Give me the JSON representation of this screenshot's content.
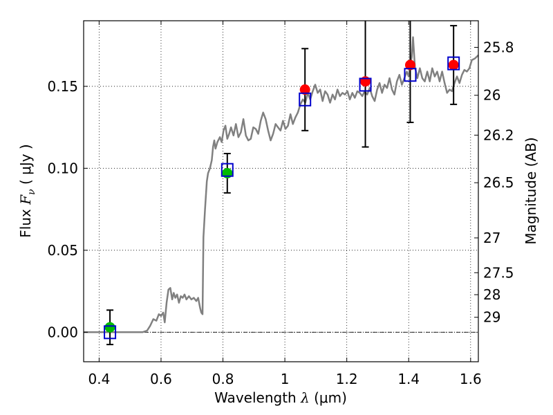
{
  "chart_data": {
    "type": "scatter",
    "title": "",
    "xlabel_prefix": "Wavelength ",
    "xlabel_symbol": "λ",
    "xlabel_unit": " (μm)",
    "ylabel_prefix": "Flux ",
    "ylabel_symbol": "F",
    "ylabel_subscript": "ν",
    "ylabel_unit": " ( μJy )",
    "y2label": "Magnitude (AB)",
    "xlim": [
      0.35,
      1.625
    ],
    "ylim": [
      -0.018,
      0.19
    ],
    "grid": true,
    "x_ticks": [
      {
        "value": 0.4,
        "label": "0.4"
      },
      {
        "value": 0.6,
        "label": "0.6"
      },
      {
        "value": 0.8,
        "label": "0.8"
      },
      {
        "value": 1.0,
        "label": "1"
      },
      {
        "value": 1.2,
        "label": "1.2"
      },
      {
        "value": 1.4,
        "label": "1.4"
      },
      {
        "value": 1.6,
        "label": "1.6"
      }
    ],
    "y_ticks": [
      {
        "value": 0.0,
        "label": "0.00"
      },
      {
        "value": 0.05,
        "label": "0.05"
      },
      {
        "value": 0.1,
        "label": "0.10"
      },
      {
        "value": 0.15,
        "label": "0.15"
      }
    ],
    "y2_ticks": [
      {
        "value": 25.8,
        "label": "25.8"
      },
      {
        "value": 26.0,
        "label": "26"
      },
      {
        "value": 26.2,
        "label": "26.2"
      },
      {
        "value": 26.5,
        "label": "26.5"
      },
      {
        "value": 27.0,
        "label": "27"
      },
      {
        "value": 27.5,
        "label": "27.5"
      },
      {
        "value": 28.0,
        "label": "28"
      },
      {
        "value": 29.0,
        "label": "29"
      }
    ],
    "model_spectrum": {
      "color": "#808080",
      "points": [
        [
          0.35,
          0.0
        ],
        [
          0.54,
          0.0
        ],
        [
          0.555,
          0.001
        ],
        [
          0.565,
          0.004
        ],
        [
          0.575,
          0.008
        ],
        [
          0.585,
          0.007
        ],
        [
          0.593,
          0.011
        ],
        [
          0.6,
          0.01
        ],
        [
          0.607,
          0.012
        ],
        [
          0.612,
          0.006
        ],
        [
          0.618,
          0.018
        ],
        [
          0.624,
          0.026
        ],
        [
          0.63,
          0.027
        ],
        [
          0.636,
          0.02
        ],
        [
          0.641,
          0.024
        ],
        [
          0.646,
          0.021
        ],
        [
          0.652,
          0.023
        ],
        [
          0.658,
          0.018
        ],
        [
          0.664,
          0.022
        ],
        [
          0.67,
          0.021
        ],
        [
          0.676,
          0.023
        ],
        [
          0.682,
          0.02
        ],
        [
          0.69,
          0.022
        ],
        [
          0.698,
          0.02
        ],
        [
          0.706,
          0.021
        ],
        [
          0.714,
          0.019
        ],
        [
          0.72,
          0.021
        ],
        [
          0.726,
          0.015
        ],
        [
          0.73,
          0.012
        ],
        [
          0.734,
          0.011
        ],
        [
          0.737,
          0.058
        ],
        [
          0.742,
          0.075
        ],
        [
          0.748,
          0.092
        ],
        [
          0.752,
          0.097
        ],
        [
          0.758,
          0.1
        ],
        [
          0.764,
          0.105
        ],
        [
          0.768,
          0.113
        ],
        [
          0.772,
          0.117
        ],
        [
          0.776,
          0.112
        ],
        [
          0.782,
          0.116
        ],
        [
          0.79,
          0.119
        ],
        [
          0.796,
          0.116
        ],
        [
          0.802,
          0.123
        ],
        [
          0.808,
          0.126
        ],
        [
          0.814,
          0.118
        ],
        [
          0.82,
          0.121
        ],
        [
          0.826,
          0.125
        ],
        [
          0.834,
          0.12
        ],
        [
          0.842,
          0.127
        ],
        [
          0.85,
          0.119
        ],
        [
          0.858,
          0.122
        ],
        [
          0.866,
          0.13
        ],
        [
          0.874,
          0.12
        ],
        [
          0.882,
          0.117
        ],
        [
          0.89,
          0.118
        ],
        [
          0.898,
          0.125
        ],
        [
          0.906,
          0.124
        ],
        [
          0.914,
          0.121
        ],
        [
          0.922,
          0.129
        ],
        [
          0.93,
          0.134
        ],
        [
          0.938,
          0.13
        ],
        [
          0.946,
          0.123
        ],
        [
          0.954,
          0.117
        ],
        [
          0.962,
          0.121
        ],
        [
          0.97,
          0.127
        ],
        [
          0.978,
          0.125
        ],
        [
          0.986,
          0.123
        ],
        [
          0.994,
          0.129
        ],
        [
          1.002,
          0.124
        ],
        [
          1.01,
          0.126
        ],
        [
          1.018,
          0.133
        ],
        [
          1.026,
          0.127
        ],
        [
          1.034,
          0.131
        ],
        [
          1.042,
          0.134
        ],
        [
          1.05,
          0.139
        ],
        [
          1.058,
          0.142
        ],
        [
          1.066,
          0.14
        ],
        [
          1.074,
          0.146
        ],
        [
          1.082,
          0.142
        ],
        [
          1.09,
          0.147
        ],
        [
          1.098,
          0.151
        ],
        [
          1.106,
          0.146
        ],
        [
          1.114,
          0.148
        ],
        [
          1.122,
          0.141
        ],
        [
          1.13,
          0.147
        ],
        [
          1.138,
          0.145
        ],
        [
          1.146,
          0.14
        ],
        [
          1.154,
          0.145
        ],
        [
          1.162,
          0.142
        ],
        [
          1.17,
          0.148
        ],
        [
          1.178,
          0.144
        ],
        [
          1.186,
          0.146
        ],
        [
          1.194,
          0.145
        ],
        [
          1.202,
          0.147
        ],
        [
          1.21,
          0.142
        ],
        [
          1.218,
          0.146
        ],
        [
          1.226,
          0.143
        ],
        [
          1.234,
          0.147
        ],
        [
          1.242,
          0.146
        ],
        [
          1.25,
          0.144
        ],
        [
          1.258,
          0.147
        ],
        [
          1.266,
          0.145
        ],
        [
          1.274,
          0.149
        ],
        [
          1.282,
          0.144
        ],
        [
          1.29,
          0.141
        ],
        [
          1.298,
          0.148
        ],
        [
          1.306,
          0.152
        ],
        [
          1.314,
          0.146
        ],
        [
          1.322,
          0.151
        ],
        [
          1.33,
          0.149
        ],
        [
          1.338,
          0.155
        ],
        [
          1.346,
          0.148
        ],
        [
          1.354,
          0.145
        ],
        [
          1.362,
          0.153
        ],
        [
          1.37,
          0.157
        ],
        [
          1.378,
          0.151
        ],
        [
          1.386,
          0.155
        ],
        [
          1.394,
          0.159
        ],
        [
          1.4,
          0.156
        ],
        [
          1.405,
          0.163
        ],
        [
          1.41,
          0.168
        ],
        [
          1.414,
          0.18
        ],
        [
          1.42,
          0.162
        ],
        [
          1.428,
          0.155
        ],
        [
          1.436,
          0.161
        ],
        [
          1.444,
          0.155
        ],
        [
          1.452,
          0.153
        ],
        [
          1.46,
          0.159
        ],
        [
          1.468,
          0.153
        ],
        [
          1.476,
          0.161
        ],
        [
          1.484,
          0.156
        ],
        [
          1.492,
          0.159
        ],
        [
          1.5,
          0.153
        ],
        [
          1.508,
          0.159
        ],
        [
          1.516,
          0.152
        ],
        [
          1.524,
          0.146
        ],
        [
          1.532,
          0.148
        ],
        [
          1.54,
          0.147
        ],
        [
          1.548,
          0.152
        ],
        [
          1.556,
          0.156
        ],
        [
          1.564,
          0.152
        ],
        [
          1.572,
          0.157
        ],
        [
          1.58,
          0.16
        ],
        [
          1.588,
          0.159
        ],
        [
          1.596,
          0.161
        ],
        [
          1.604,
          0.166
        ],
        [
          1.614,
          0.167
        ],
        [
          1.625,
          0.169
        ]
      ]
    },
    "observed": [
      {
        "x": 0.435,
        "y": 0.003,
        "err": 0.0105,
        "color": "#00bb00"
      },
      {
        "x": 0.814,
        "y": 0.097,
        "err": 0.012,
        "color": "#00bb00"
      },
      {
        "x": 1.065,
        "y": 0.148,
        "err": 0.025,
        "color": "#ff0000"
      },
      {
        "x": 1.26,
        "y": 0.153,
        "err": 0.04,
        "color": "#ff0000"
      },
      {
        "x": 1.405,
        "y": 0.163,
        "err": 0.035,
        "color": "#ff0000"
      },
      {
        "x": 1.545,
        "y": 0.163,
        "err": 0.024,
        "color": "#ff0000"
      }
    ],
    "synthetic": [
      {
        "x": 0.435,
        "y": 0.0
      },
      {
        "x": 0.814,
        "y": 0.099
      },
      {
        "x": 1.065,
        "y": 0.142
      },
      {
        "x": 1.26,
        "y": 0.151
      },
      {
        "x": 1.405,
        "y": 0.157
      },
      {
        "x": 1.545,
        "y": 0.164
      }
    ],
    "colors": {
      "spectrum": "#808080",
      "synthetic_box": "#0000cc",
      "errorbar": "#000000",
      "zero_line": "#000000",
      "grid": "#000000"
    }
  }
}
